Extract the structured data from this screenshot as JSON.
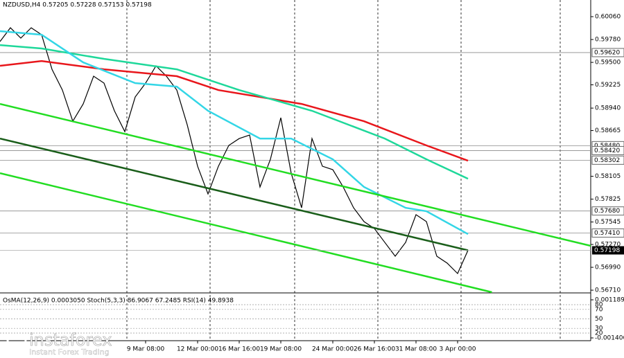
{
  "chart_data": {
    "type": "line",
    "title": "NZDUSD,H4  0.57205 0.57228 0.57153 0.57198",
    "indicator_title": "OsMA(12,26,9) 0.0003050  Stoch(5,3,3) 86.9067 67.2485  RSI(14) 49.8938",
    "logo": "instaforex",
    "logo_tagline": "Instant Forex Trading",
    "xlim": [
      0,
      56.8
    ],
    "ylim": [
      0.56685,
      0.60264
    ],
    "yticks": [
      {
        "value": 0.6006,
        "label": "0.60060"
      },
      {
        "value": 0.5978,
        "label": "0.59780"
      },
      {
        "value": 0.595,
        "label": "0.59500"
      },
      0.59225,
      {
        "value": 0.5894,
        "label": "0.58940"
      },
      0.58665,
      0.58105,
      0.57825,
      0.57545,
      {
        "value": 0.5727,
        "label": "0.57270"
      },
      {
        "value": 0.5699,
        "label": "0.56990"
      },
      {
        "value": 0.5671,
        "label": "0.56710"
      }
    ],
    "xticks": [
      {
        "value": 14,
        "label": "9 Mar 08:00"
      },
      {
        "value": 19,
        "label": "12 Mar 00:00"
      },
      {
        "value": 23,
        "label": "16 Mar 16:00"
      },
      {
        "value": 27,
        "label": "19 Mar 08:00"
      },
      {
        "value": 32,
        "label": "24 Mar 00:00"
      },
      {
        "value": 36,
        "label": "26 Mar 16:00"
      },
      {
        "value": 40,
        "label": "31 Mar 08:00"
      },
      {
        "value": 44,
        "label": "3 Apr 00:00"
      }
    ],
    "levels": [
      {
        "value": 0.5962,
        "label": "0.59620"
      },
      {
        "value": 0.5848,
        "label": "0.58480"
      },
      {
        "value": 0.5842,
        "label": "0.58420"
      },
      0.58302,
      {
        "value": 0.5768,
        "label": "0.57680"
      },
      {
        "value": 0.5741,
        "label": "0.57410"
      }
    ],
    "current": 0.57198,
    "series": [
      {
        "color": "#000000",
        "x": [
          0,
          1,
          2,
          3,
          4,
          5,
          6,
          7,
          8,
          9,
          10,
          11,
          12,
          13,
          14,
          15,
          16,
          17,
          18,
          19,
          20,
          21,
          22,
          23,
          24,
          25,
          26,
          27,
          28,
          29,
          30,
          31,
          32,
          33,
          34,
          35,
          36,
          37,
          38,
          39,
          40,
          41,
          42,
          43,
          44,
          45
        ],
        "values": [
          0.59755,
          0.59924,
          0.59797,
          0.59924,
          0.59839,
          0.59415,
          0.59161,
          0.58779,
          0.58991,
          0.59331,
          0.59246,
          0.58907,
          0.58652,
          0.59076,
          0.59246,
          0.59458,
          0.59331,
          0.59161,
          0.58737,
          0.58228,
          0.57889,
          0.58228,
          0.58483,
          0.58567,
          0.5861,
          0.57974,
          0.58313,
          0.58822,
          0.58143,
          0.57719,
          0.58567,
          0.58228,
          0.58186,
          0.57974,
          0.57719,
          0.5755,
          0.57465,
          0.57295,
          0.57126,
          0.57295,
          0.57635,
          0.5755,
          0.57126,
          0.57041,
          0.56914,
          0.57198
        ]
      },
      {
        "color": "#e8161b",
        "x": [
          0,
          4,
          10,
          17,
          21,
          29,
          35,
          41,
          45
        ],
        "values": [
          0.59458,
          0.59517,
          0.59415,
          0.59331,
          0.59161,
          0.58991,
          0.58779,
          0.58483,
          0.58296
        ]
      },
      {
        "color": "#1ed89a",
        "x": [
          0,
          4,
          10,
          17,
          23,
          30,
          37,
          41,
          45
        ],
        "values": [
          0.59712,
          0.5967,
          0.59543,
          0.59415,
          0.59161,
          0.58907,
          0.58567,
          0.58313,
          0.58075
        ]
      },
      {
        "color": "#33d6e6",
        "x": [
          0,
          4,
          8,
          13,
          17,
          20,
          25,
          28,
          32,
          35,
          39,
          41,
          45
        ],
        "values": [
          0.59882,
          0.59839,
          0.595,
          0.59246,
          0.59203,
          0.58907,
          0.58567,
          0.58567,
          0.58313,
          0.57974,
          0.57719,
          0.57677,
          0.57397
        ]
      },
      {
        "color": "#22dd22",
        "x": [
          0,
          56.8
        ],
        "values": [
          0.58991,
          0.57253
        ]
      },
      {
        "color": "#1a5e1a",
        "x": [
          0,
          45
        ],
        "values": [
          0.58567,
          0.57198
        ]
      },
      {
        "color": "#22dd22",
        "x": [
          0,
          47.3
        ],
        "values": [
          0.58143,
          0.56685
        ]
      }
    ],
    "osma_lim": [
      -0.0014069,
      0.0011899
    ],
    "osma_ticks": [
      {
        "value": 0.0011899,
        "label": "0.0011899"
      },
      {
        "value": -0.0014069,
        "label": "-0.0014069"
      }
    ],
    "stoch_lim": [
      0,
      100
    ],
    "stoch_ticks": [
      80,
      70,
      50,
      30,
      20
    ]
  }
}
